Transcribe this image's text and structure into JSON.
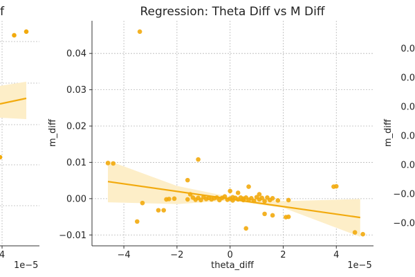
{
  "colors": {
    "marker": "#f2aa0d",
    "line": "#f2aa0d",
    "band": "#fdeec8",
    "grid": "#b8b8b8",
    "axis": "#333333"
  },
  "left_panel": {
    "title_fragment": "f",
    "x_tick_labels": [
      "4"
    ],
    "x_offset": "1e−5",
    "points": [
      {
        "x": 4.5,
        "y": 0.045
      },
      {
        "x": 5.0,
        "y": 0.046
      }
    ]
  },
  "right_panel": {
    "ylabel": "m_diff",
    "y_tick_labels": [
      "0.0",
      "0.0",
      "0.0",
      "0.0",
      "0.0",
      "−0.0",
      "−0.0"
    ]
  },
  "chart_data": {
    "type": "scatter",
    "title": "Regression: Theta Diff vs M Diff",
    "xlabel": "theta_diff",
    "ylabel": "m_diff",
    "x_offset_label": "1e−5",
    "x_scale": 1e-05,
    "xlim": [
      -5.2,
      5.4
    ],
    "ylim": [
      -0.013,
      0.049
    ],
    "x_ticks": [
      -4,
      -2,
      0,
      2,
      4
    ],
    "x_tick_labels": [
      "−4",
      "−2",
      "0",
      "2",
      "4"
    ],
    "y_ticks": [
      -0.01,
      0.0,
      0.01,
      0.02,
      0.03,
      0.04
    ],
    "y_tick_labels": [
      "−0.01",
      "0.00",
      "0.01",
      "0.02",
      "0.03",
      "0.04"
    ],
    "grid": true,
    "regression": {
      "x": [
        -4.6,
        4.9
      ],
      "y": [
        0.0047,
        -0.0052
      ]
    },
    "confidence_band": {
      "x": [
        -4.6,
        -2.0,
        0.0,
        2.0,
        4.9
      ],
      "upper": [
        0.0105,
        0.0035,
        0.0005,
        -0.0007,
        -0.0001
      ],
      "lower": [
        -0.001,
        -0.0015,
        -0.0005,
        -0.0025,
        -0.0105
      ]
    },
    "points": [
      {
        "x": -4.6,
        "y": 0.0098
      },
      {
        "x": -4.4,
        "y": 0.0097
      },
      {
        "x": -3.5,
        "y": -0.0063
      },
      {
        "x": -3.4,
        "y": 0.046
      },
      {
        "x": -3.3,
        "y": -0.0012
      },
      {
        "x": -2.7,
        "y": -0.0032
      },
      {
        "x": -2.5,
        "y": -0.0032
      },
      {
        "x": -2.4,
        "y": -0.0002
      },
      {
        "x": -2.3,
        "y": -0.0001
      },
      {
        "x": -2.1,
        "y": 0.0
      },
      {
        "x": -1.6,
        "y": 0.0051
      },
      {
        "x": -1.6,
        "y": -0.0002
      },
      {
        "x": -1.5,
        "y": 0.0012
      },
      {
        "x": -1.4,
        "y": 0.0003
      },
      {
        "x": -1.3,
        "y": -0.0003
      },
      {
        "x": -1.2,
        "y": 0.0108
      },
      {
        "x": -1.2,
        "y": 0.0002
      },
      {
        "x": -1.1,
        "y": -0.0004
      },
      {
        "x": -1.0,
        "y": 0.0004
      },
      {
        "x": -0.9,
        "y": -0.0001
      },
      {
        "x": -0.8,
        "y": 0.0002
      },
      {
        "x": -0.7,
        "y": -0.0002
      },
      {
        "x": -0.6,
        "y": 0.0001
      },
      {
        "x": -0.5,
        "y": 0.0003
      },
      {
        "x": -0.4,
        "y": -0.0004
      },
      {
        "x": -0.3,
        "y": 0.0002
      },
      {
        "x": -0.2,
        "y": 0.0006
      },
      {
        "x": -0.1,
        "y": -0.0003
      },
      {
        "x": 0.0,
        "y": 0.0
      },
      {
        "x": 0.0,
        "y": 0.0021
      },
      {
        "x": 0.1,
        "y": 0.0004
      },
      {
        "x": 0.1,
        "y": -0.0005
      },
      {
        "x": 0.2,
        "y": 0.0002
      },
      {
        "x": 0.3,
        "y": -0.0002
      },
      {
        "x": 0.3,
        "y": 0.0016
      },
      {
        "x": 0.4,
        "y": 0.0003
      },
      {
        "x": 0.5,
        "y": -0.0004
      },
      {
        "x": 0.5,
        "y": 0.0
      },
      {
        "x": 0.6,
        "y": -0.0082
      },
      {
        "x": 0.6,
        "y": 0.0003
      },
      {
        "x": 0.7,
        "y": 0.0033
      },
      {
        "x": 0.7,
        "y": -0.0003
      },
      {
        "x": 0.8,
        "y": 0.0001
      },
      {
        "x": 0.9,
        "y": -0.0006
      },
      {
        "x": 1.0,
        "y": 0.0004
      },
      {
        "x": 1.1,
        "y": 0.0012
      },
      {
        "x": 1.1,
        "y": -0.0002
      },
      {
        "x": 1.2,
        "y": 0.0002
      },
      {
        "x": 1.3,
        "y": -0.0007
      },
      {
        "x": 1.3,
        "y": -0.0042
      },
      {
        "x": 1.4,
        "y": 0.0003
      },
      {
        "x": 1.5,
        "y": -0.0004
      },
      {
        "x": 1.6,
        "y": 0.0001
      },
      {
        "x": 1.6,
        "y": -0.0046
      },
      {
        "x": 1.8,
        "y": -0.0005
      },
      {
        "x": 2.1,
        "y": -0.0051
      },
      {
        "x": 2.2,
        "y": -0.005
      },
      {
        "x": 2.2,
        "y": -0.0004
      },
      {
        "x": 3.9,
        "y": 0.0033
      },
      {
        "x": 4.0,
        "y": 0.0034
      },
      {
        "x": 4.7,
        "y": -0.0093
      },
      {
        "x": 5.0,
        "y": -0.0098
      }
    ]
  }
}
